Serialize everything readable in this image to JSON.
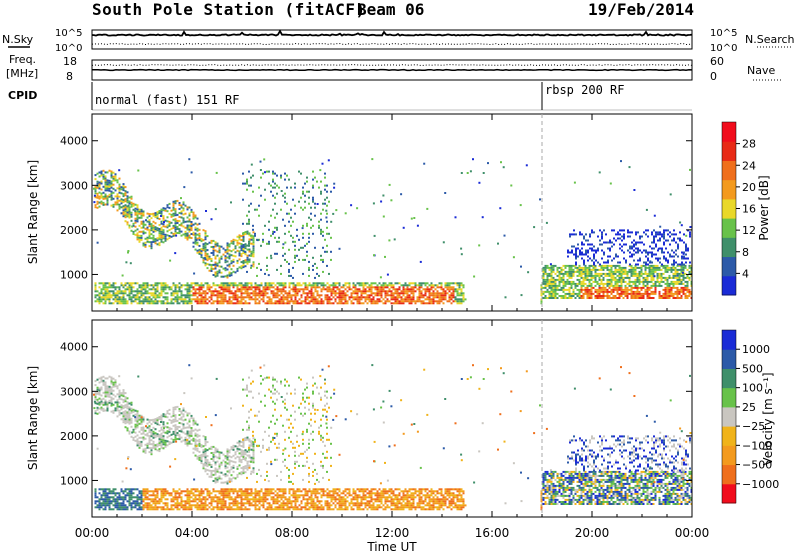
{
  "header": {
    "station": "South Pole Station (fitACF)",
    "beam": "Beam 06",
    "date": "19/Feb/2014"
  },
  "noise_panel": {
    "left_label": "N.Sky",
    "right_label": "N.Search",
    "tick_top": "10^5",
    "tick_bottom": "10^0"
  },
  "freq_panel": {
    "left_label_line1": "Freq.",
    "left_label_line2": "[MHz]",
    "left_tick_top": "18",
    "left_tick_bottom": "8",
    "right_label": "Nave",
    "right_tick_top": "60",
    "right_tick_bottom": "0"
  },
  "cpid_panel": {
    "label": "CPID",
    "mode_1": "normal (fast) 151 RF",
    "mode_2": "rbsp 200 RF"
  },
  "colors": {
    "power_scale": [
      "#1a2bd6",
      "#2c5aa8",
      "#3f8f6a",
      "#68c24a",
      "#e9d829",
      "#f39a1e",
      "#ef6f1c",
      "#e82a16",
      "#f10c1c"
    ],
    "velocity_scale": [
      "#f10c1c",
      "#ef6f1c",
      "#f39a1e",
      "#f0b31a",
      "#c9c6c0",
      "#68c24a",
      "#3f8f6a",
      "#2c5aa8",
      "#1a2bd6"
    ]
  },
  "chart_data": [
    {
      "type": "heatmap",
      "name": "power",
      "ylabel": "Slant Range [km]",
      "y_ticks": [
        "1000",
        "2000",
        "3000",
        "4000"
      ],
      "ylim": [
        180,
        4600
      ],
      "colorbar_label": "Power [dB]",
      "colorbar_ticks": [
        "4",
        "8",
        "12",
        "16",
        "20",
        "24",
        "28"
      ],
      "colorbar_range": [
        0,
        32
      ]
    },
    {
      "type": "heatmap",
      "name": "velocity",
      "ylabel": "Slant Range [km]",
      "y_ticks": [
        "1000",
        "2000",
        "3000",
        "4000"
      ],
      "ylim": [
        180,
        4600
      ],
      "colorbar_label": "Velocity [m s⁻¹]",
      "colorbar_ticks": [
        "1000",
        "500",
        "100",
        "25",
        "−25",
        "−100",
        "−500",
        "−1000"
      ]
    }
  ],
  "time_axis": {
    "label": "Time UT",
    "ticks": [
      "00:00",
      "04:00",
      "08:00",
      "12:00",
      "16:00",
      "20:00",
      "00:00"
    ],
    "range_hours": [
      0,
      24
    ],
    "mode_change_hour": 18
  }
}
